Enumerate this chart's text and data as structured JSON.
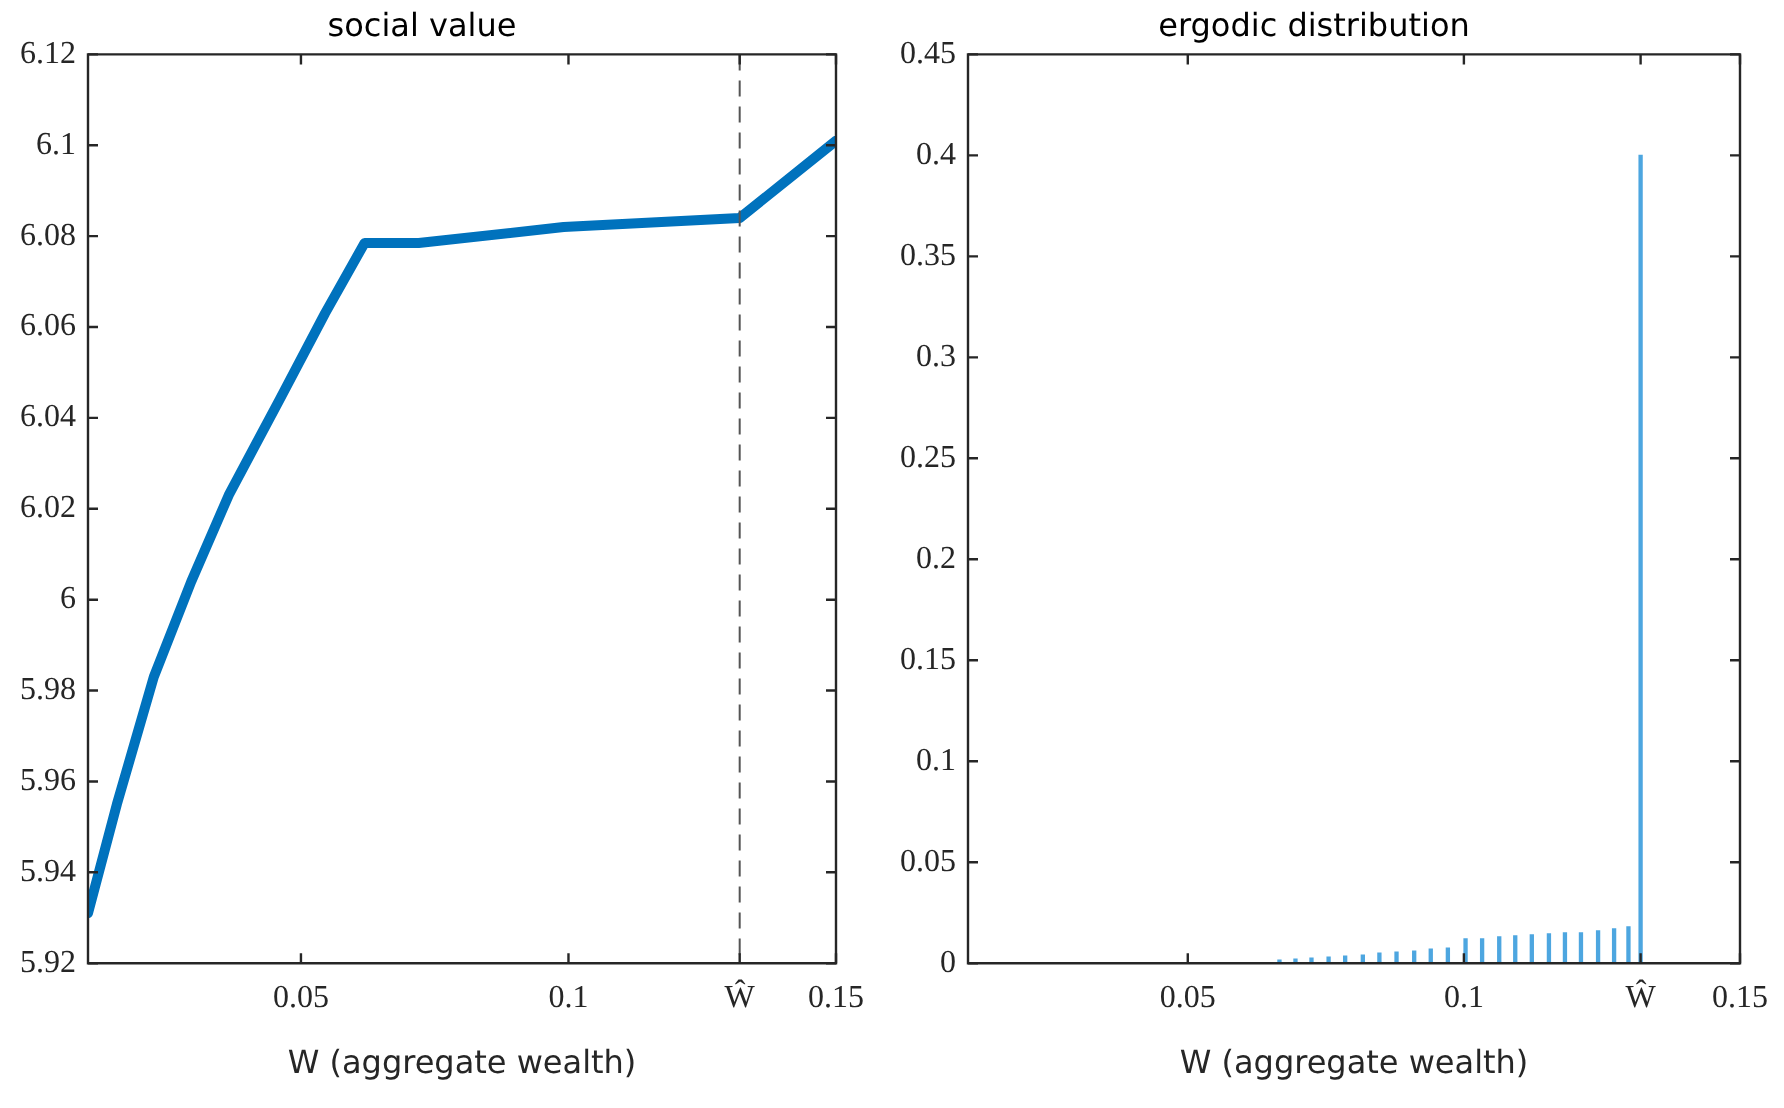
{
  "chart_data": [
    {
      "type": "line",
      "title": "social value",
      "xlabel": "W (aggregate wealth)",
      "color": "#0072bd",
      "x": [
        0.0102,
        0.0156,
        0.0225,
        0.0295,
        0.0365,
        0.046,
        0.0545,
        0.0619,
        0.072,
        0.0991,
        0.132,
        0.15
      ],
      "values": [
        5.931,
        5.955,
        5.983,
        6.004,
        6.023,
        6.044,
        6.063,
        6.0785,
        6.0785,
        6.082,
        6.084,
        6.101
      ],
      "xlim": [
        0.0102,
        0.15
      ],
      "xticks": [
        0.05,
        0.1,
        {
          "value": 0.132,
          "label": "Ŵ"
        },
        0.15
      ],
      "ylim": [
        5.92,
        6.12
      ],
      "yticks": [
        5.92,
        5.94,
        5.96,
        5.98,
        6,
        6.02,
        6.04,
        6.06,
        6.08,
        6.1,
        6.12
      ],
      "ref_lines": [
        {
          "axis": "x",
          "value": 0.132,
          "color": "#555555",
          "line_style": "dashed"
        }
      ],
      "grid": false,
      "legend": false,
      "marker": "none",
      "line_style": "solid"
    },
    {
      "type": "bar",
      "title": "ergodic distribution",
      "xlabel": "W (aggregate wealth)",
      "color": "#4da6e0",
      "x": [
        0.0666,
        0.0695,
        0.0724,
        0.0755,
        0.0785,
        0.0817,
        0.0847,
        0.0878,
        0.091,
        0.094,
        0.0971,
        0.1003,
        0.1033,
        0.1064,
        0.1093,
        0.1123,
        0.1154,
        0.1183,
        0.1212,
        0.1243,
        0.1272,
        0.1298,
        0.132
      ],
      "values": [
        0.0015,
        0.002,
        0.0025,
        0.003,
        0.0035,
        0.004,
        0.005,
        0.0055,
        0.006,
        0.007,
        0.0075,
        0.012,
        0.012,
        0.013,
        0.0135,
        0.014,
        0.0145,
        0.015,
        0.015,
        0.016,
        0.017,
        0.018,
        0.4
      ],
      "xlim": [
        0.0102,
        0.15
      ],
      "xticks": [
        0.05,
        0.1,
        {
          "value": 0.132,
          "label": "Ŵ"
        },
        0.15
      ],
      "ylim": [
        0,
        0.45
      ],
      "yticks": [
        0,
        0.05,
        0.1,
        0.15,
        0.2,
        0.25,
        0.3,
        0.35,
        0.4,
        0.45
      ],
      "grid": false,
      "legend": false
    }
  ]
}
